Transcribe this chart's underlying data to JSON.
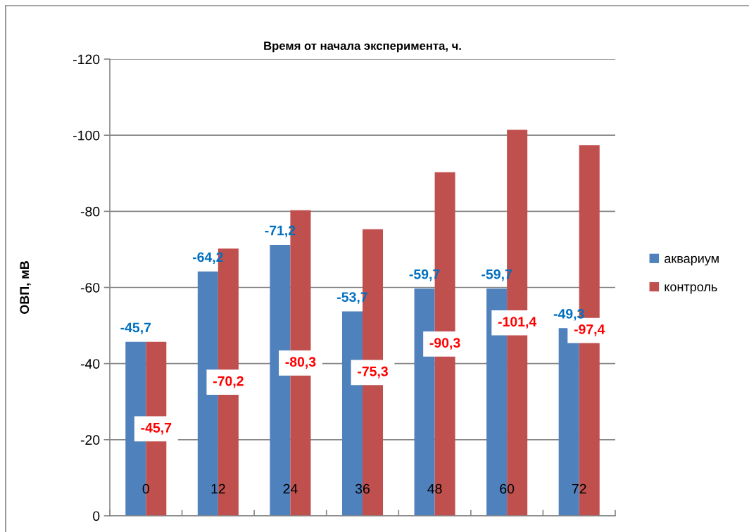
{
  "chart_data": {
    "type": "bar",
    "xlabel": "Время от начала эксперимента, ч.",
    "ylabel": "ОВП, мВ",
    "categories": [
      "0",
      "12",
      "24",
      "36",
      "48",
      "60",
      "72"
    ],
    "series": [
      {
        "name": "аквариум",
        "color": "#4f81bd",
        "values": [
          -45.7,
          -64.2,
          -71.2,
          -53.7,
          -59.7,
          -59.7,
          -49.3
        ],
        "value_labels": [
          "-45,7",
          "-64,2",
          "-71,2",
          "-53,7",
          "-59,7",
          "-59,7",
          "-49,3"
        ]
      },
      {
        "name": "контроль",
        "color": "#c0504d",
        "values": [
          -45.7,
          -70.2,
          -80.3,
          -75.3,
          -90.3,
          -101.4,
          -97.4
        ],
        "value_labels": [
          "-45,7",
          "-70,2",
          "-80,3",
          "-75,3",
          "-90,3",
          "-101,4",
          "-97,4"
        ]
      }
    ],
    "ylim": [
      0,
      -120
    ],
    "yticks": [
      0,
      -20,
      -40,
      -60,
      -80,
      -100,
      -120
    ],
    "grid": "y",
    "legend": "right"
  }
}
